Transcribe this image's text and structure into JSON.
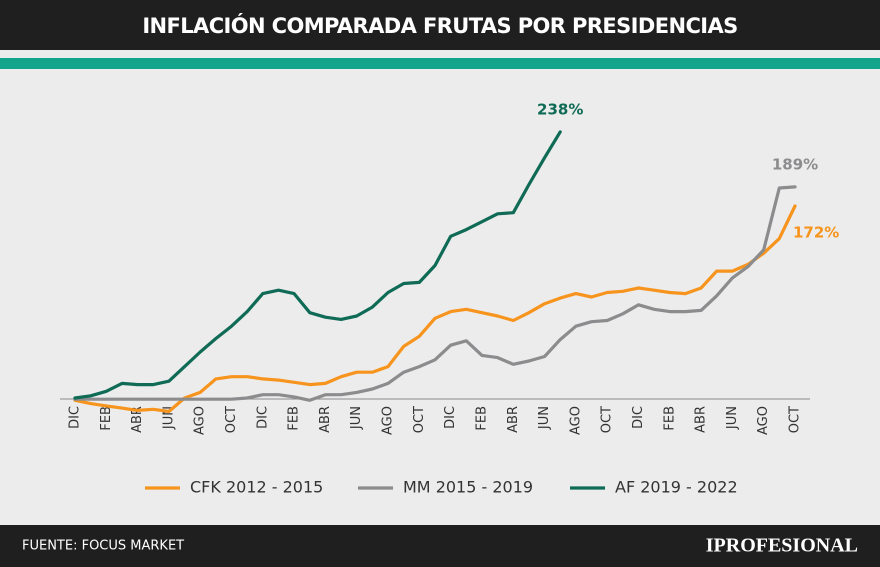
{
  "chart_data": {
    "type": "line",
    "title": "INFLACIÓN COMPARADA FRUTAS POR PRESIDENCIAS",
    "source": "FUENTE: FOCUS MARKET",
    "brand": "IPROFESIONAL",
    "categories": [
      "DIC",
      null,
      "FEB",
      null,
      "ABR",
      null,
      "JUN",
      null,
      "AGO",
      null,
      "OCT",
      null,
      "DIC",
      null,
      "FEB",
      null,
      "ABR",
      null,
      "JUN",
      null,
      "AGO",
      null,
      "OCT",
      null,
      "DIC",
      null,
      "FEB",
      null,
      "ABR",
      null,
      "JUN",
      null,
      "AGO",
      null,
      "OCT",
      null,
      "DIC",
      null,
      "FEB",
      null,
      "ABR",
      null,
      "JUN",
      null,
      "AGO",
      null,
      "OCT"
    ],
    "ylim": [
      -15,
      245
    ],
    "legend": "bottom",
    "series": [
      {
        "name": "CFK 2012 - 2015",
        "color": "#f7941d",
        "values": [
          -1,
          -4,
          -6,
          -8,
          -10,
          -9,
          -11,
          1,
          6,
          18,
          20,
          20,
          18,
          17,
          15,
          13,
          14,
          20,
          24,
          24,
          29,
          47,
          56,
          72,
          78,
          80,
          77,
          74,
          70,
          77,
          85,
          90,
          94,
          91,
          95,
          96,
          99,
          97,
          95,
          94,
          99,
          114,
          114,
          120,
          130,
          143,
          172
        ],
        "value_labels": [
          null,
          null,
          null,
          null,
          null,
          null,
          null,
          null,
          null,
          null,
          null,
          null,
          null,
          null,
          null,
          null,
          null,
          null,
          null,
          null,
          null,
          null,
          null,
          null,
          null,
          null,
          null,
          null,
          null,
          null,
          null,
          null,
          null,
          null,
          null,
          null,
          null,
          null,
          null,
          null,
          null,
          null,
          null,
          null,
          null,
          null,
          "172%"
        ]
      },
      {
        "name": "MM 2015 - 2019",
        "color": "#8c8c8e",
        "values": [
          0,
          0,
          0,
          0,
          0,
          0,
          0,
          0,
          0,
          0,
          0,
          1,
          4,
          4,
          2,
          -1,
          4,
          4,
          6,
          9,
          14,
          24,
          29,
          35,
          48,
          52,
          39,
          37,
          31,
          34,
          38,
          53,
          65,
          69,
          70,
          76,
          84,
          80,
          78,
          78,
          79,
          92,
          108,
          118,
          133,
          188,
          189
        ],
        "value_labels": [
          null,
          null,
          null,
          null,
          null,
          null,
          null,
          null,
          null,
          null,
          null,
          null,
          null,
          null,
          null,
          null,
          null,
          null,
          null,
          null,
          null,
          null,
          null,
          null,
          null,
          null,
          null,
          null,
          null,
          null,
          null,
          null,
          null,
          null,
          null,
          null,
          null,
          null,
          null,
          null,
          null,
          null,
          null,
          null,
          null,
          null,
          "189%"
        ]
      },
      {
        "name": "AF 2019 - 2022",
        "color": "#0f6b55",
        "values": [
          1,
          3,
          7,
          14,
          13,
          13,
          16,
          29,
          42,
          54,
          65,
          78,
          94,
          97,
          94,
          77,
          73,
          71,
          74,
          82,
          95,
          103,
          104,
          119,
          145,
          151,
          158,
          165,
          166,
          191,
          215,
          238,
          null,
          null,
          null,
          null,
          null,
          null,
          null,
          null,
          null,
          null,
          null,
          null,
          null,
          null,
          null
        ],
        "value_labels": [
          null,
          null,
          null,
          null,
          null,
          null,
          null,
          null,
          null,
          null,
          null,
          null,
          null,
          null,
          null,
          null,
          null,
          null,
          null,
          null,
          null,
          null,
          null,
          null,
          null,
          null,
          null,
          null,
          null,
          null,
          null,
          "238%",
          null,
          null,
          null,
          null,
          null,
          null,
          null,
          null,
          null,
          null,
          null,
          null,
          null,
          null,
          null
        ]
      }
    ]
  }
}
